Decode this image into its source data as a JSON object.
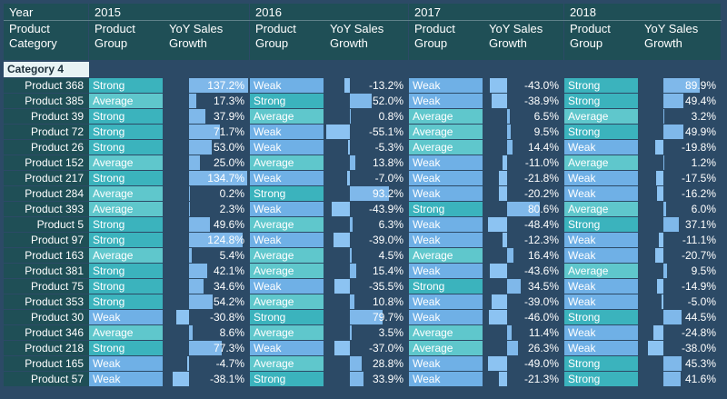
{
  "header": {
    "year_label": "Year",
    "category_label": "Product\nCategory",
    "years": [
      "2015",
      "2016",
      "2017",
      "2018"
    ],
    "group_label": "Product\nGroup",
    "growth_label": "YoY Sales\nGrowth"
  },
  "category": "Category 4",
  "colors": {
    "strong": "#3bb3bd",
    "average": "#5fc7cc",
    "weak": "#6fb0e6",
    "header": "#1f4f56",
    "background": "#2c4a66"
  },
  "rows": [
    {
      "product": "Product 368",
      "cells": [
        [
          "Strong",
          "137.2%"
        ],
        [
          "Weak",
          "-13.2%"
        ],
        [
          "Weak",
          "-43.0%"
        ],
        [
          "Strong",
          "89.9%"
        ]
      ]
    },
    {
      "product": "Product 385",
      "cells": [
        [
          "Average",
          "17.3%"
        ],
        [
          "Strong",
          "52.0%"
        ],
        [
          "Weak",
          "-38.9%"
        ],
        [
          "Strong",
          "49.4%"
        ]
      ]
    },
    {
      "product": "Product 39",
      "cells": [
        [
          "Strong",
          "37.9%"
        ],
        [
          "Average",
          "0.8%"
        ],
        [
          "Average",
          "6.5%"
        ],
        [
          "Average",
          "3.2%"
        ]
      ]
    },
    {
      "product": "Product 72",
      "cells": [
        [
          "Strong",
          "71.7%"
        ],
        [
          "Weak",
          "-55.1%"
        ],
        [
          "Average",
          "9.5%"
        ],
        [
          "Strong",
          "49.9%"
        ]
      ]
    },
    {
      "product": "Product 26",
      "cells": [
        [
          "Strong",
          "53.0%"
        ],
        [
          "Weak",
          "-5.3%"
        ],
        [
          "Average",
          "14.4%"
        ],
        [
          "Weak",
          "-19.8%"
        ]
      ]
    },
    {
      "product": "Product 152",
      "cells": [
        [
          "Average",
          "25.0%"
        ],
        [
          "Average",
          "13.8%"
        ],
        [
          "Weak",
          "-11.0%"
        ],
        [
          "Average",
          "1.2%"
        ]
      ]
    },
    {
      "product": "Product 217",
      "cells": [
        [
          "Strong",
          "134.7%"
        ],
        [
          "Weak",
          "-7.0%"
        ],
        [
          "Weak",
          "-21.8%"
        ],
        [
          "Weak",
          "-17.5%"
        ]
      ]
    },
    {
      "product": "Product 284",
      "cells": [
        [
          "Average",
          "0.2%"
        ],
        [
          "Strong",
          "93.2%"
        ],
        [
          "Weak",
          "-20.2%"
        ],
        [
          "Weak",
          "-16.2%"
        ]
      ]
    },
    {
      "product": "Product 393",
      "cells": [
        [
          "Average",
          "2.3%"
        ],
        [
          "Weak",
          "-43.9%"
        ],
        [
          "Strong",
          "80.6%"
        ],
        [
          "Average",
          "6.0%"
        ]
      ]
    },
    {
      "product": "Product 5",
      "cells": [
        [
          "Strong",
          "49.6%"
        ],
        [
          "Average",
          "6.3%"
        ],
        [
          "Weak",
          "-48.4%"
        ],
        [
          "Strong",
          "37.1%"
        ]
      ]
    },
    {
      "product": "Product 97",
      "cells": [
        [
          "Strong",
          "124.8%"
        ],
        [
          "Weak",
          "-39.0%"
        ],
        [
          "Weak",
          "-12.3%"
        ],
        [
          "Weak",
          "-11.1%"
        ]
      ]
    },
    {
      "product": "Product 163",
      "cells": [
        [
          "Average",
          "5.4%"
        ],
        [
          "Average",
          "4.5%"
        ],
        [
          "Average",
          "16.4%"
        ],
        [
          "Weak",
          "-20.7%"
        ]
      ]
    },
    {
      "product": "Product 381",
      "cells": [
        [
          "Strong",
          "42.1%"
        ],
        [
          "Average",
          "15.4%"
        ],
        [
          "Weak",
          "-43.6%"
        ],
        [
          "Average",
          "9.5%"
        ]
      ]
    },
    {
      "product": "Product 75",
      "cells": [
        [
          "Strong",
          "34.6%"
        ],
        [
          "Weak",
          "-35.5%"
        ],
        [
          "Strong",
          "34.5%"
        ],
        [
          "Weak",
          "-14.9%"
        ]
      ]
    },
    {
      "product": "Product 353",
      "cells": [
        [
          "Strong",
          "54.2%"
        ],
        [
          "Average",
          "10.8%"
        ],
        [
          "Weak",
          "-39.0%"
        ],
        [
          "Weak",
          "-5.0%"
        ]
      ]
    },
    {
      "product": "Product 30",
      "cells": [
        [
          "Weak",
          "-30.8%"
        ],
        [
          "Strong",
          "79.7%"
        ],
        [
          "Weak",
          "-46.0%"
        ],
        [
          "Strong",
          "44.5%"
        ]
      ]
    },
    {
      "product": "Product 346",
      "cells": [
        [
          "Average",
          "8.6%"
        ],
        [
          "Average",
          "3.5%"
        ],
        [
          "Average",
          "11.4%"
        ],
        [
          "Weak",
          "-24.8%"
        ]
      ]
    },
    {
      "product": "Product 218",
      "cells": [
        [
          "Strong",
          "77.3%"
        ],
        [
          "Weak",
          "-37.0%"
        ],
        [
          "Average",
          "26.3%"
        ],
        [
          "Weak",
          "-38.0%"
        ]
      ]
    },
    {
      "product": "Product 165",
      "cells": [
        [
          "Weak",
          "-4.7%"
        ],
        [
          "Average",
          "28.8%"
        ],
        [
          "Weak",
          "-49.0%"
        ],
        [
          "Strong",
          "45.3%"
        ]
      ]
    },
    {
      "product": "Product 57",
      "cells": [
        [
          "Weak",
          "-38.1%"
        ],
        [
          "Strong",
          "33.9%"
        ],
        [
          "Weak",
          "-21.3%"
        ],
        [
          "Strong",
          "41.6%"
        ]
      ]
    }
  ]
}
